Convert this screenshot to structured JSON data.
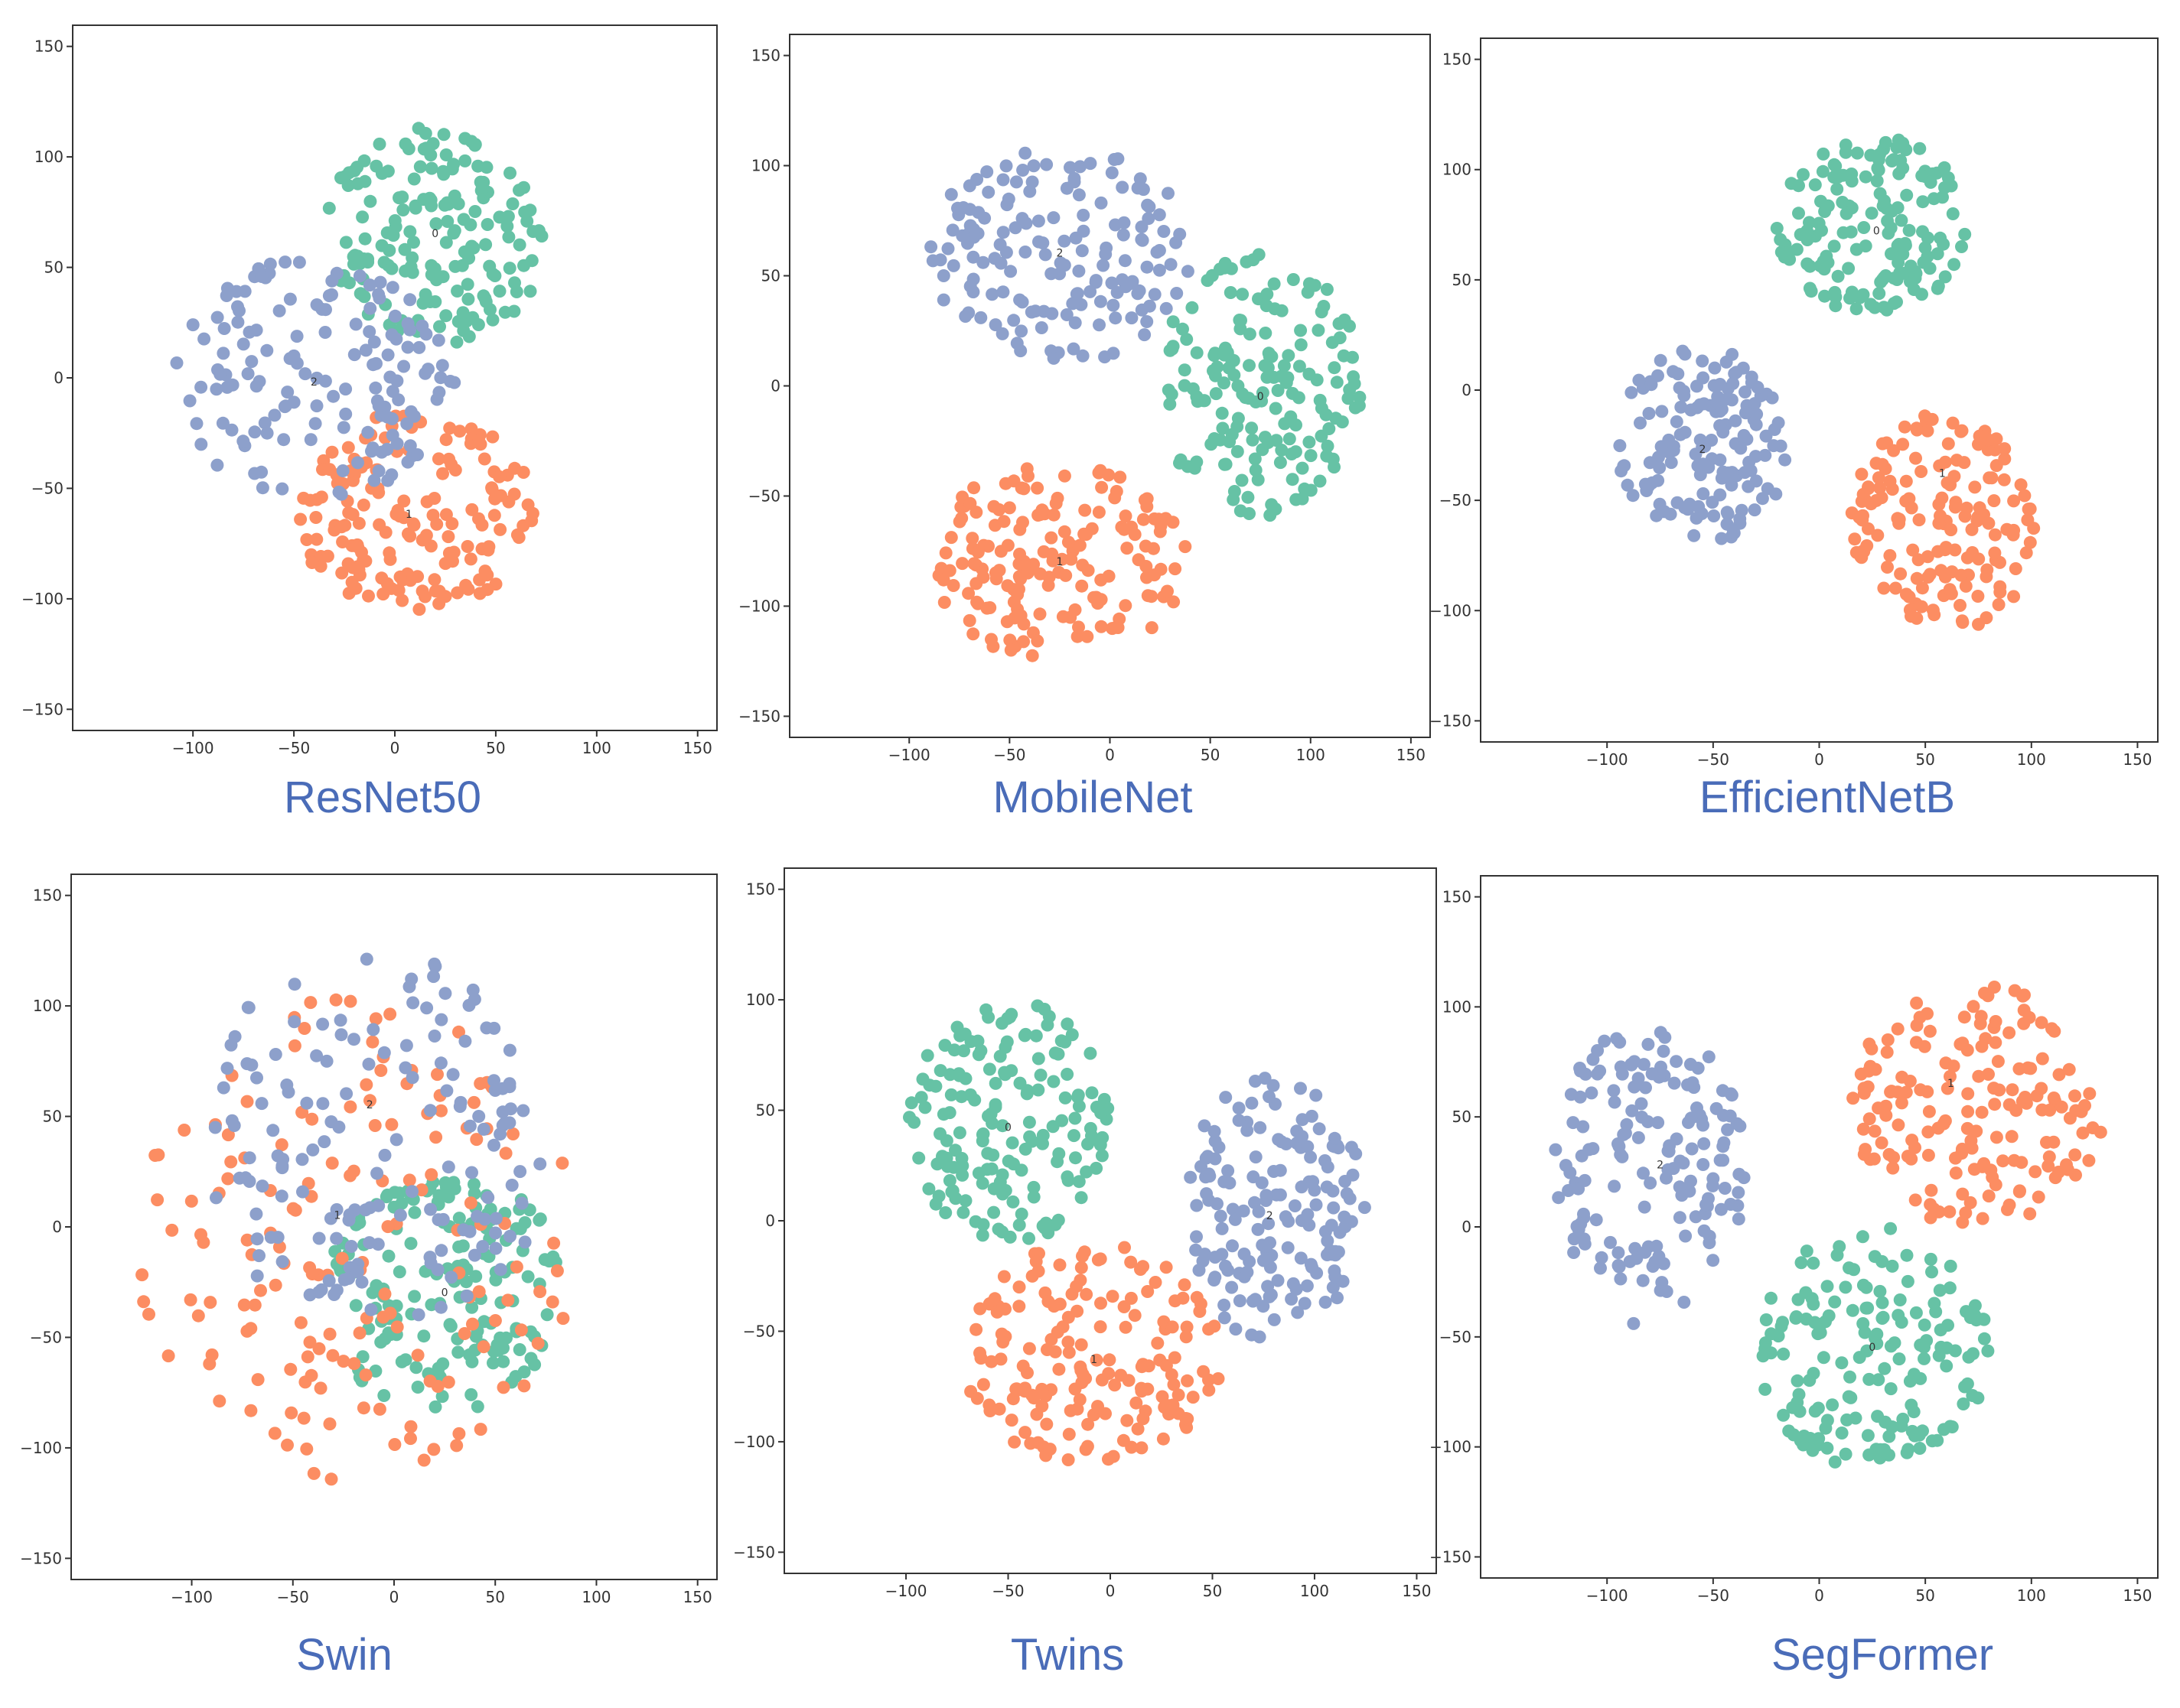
{
  "colors": {
    "class0": "#66C2A5",
    "class1": "#FC8D62",
    "class2": "#8DA0CB",
    "caption": "#4A6CB8",
    "axis": "#333333"
  },
  "chart_data": [
    {
      "type": "scatter",
      "title": "ResNet50",
      "xlim": [
        -150,
        150
      ],
      "ylim": [
        -150,
        150
      ],
      "xticks": [
        -100,
        -50,
        0,
        50,
        100,
        150
      ],
      "yticks": [
        150,
        100,
        50,
        0,
        -50,
        -100,
        -150
      ],
      "grid": false,
      "series": [
        {
          "name": "0",
          "color": "#66C2A5",
          "center": [
            20,
            65
          ],
          "spread": [
            55,
            50
          ],
          "count": 170
        },
        {
          "name": "1",
          "color": "#FC8D62",
          "center": [
            10,
            -60
          ],
          "spread": [
            60,
            45
          ],
          "count": 170
        },
        {
          "name": "2",
          "color": "#8DA0CB",
          "center": [
            -40,
            0
          ],
          "spread": [
            70,
            55
          ],
          "count": 150
        }
      ],
      "center_labels": [
        {
          "text": "0",
          "x": 20,
          "y": 65
        },
        {
          "text": "1",
          "x": 7,
          "y": -62
        },
        {
          "text": "2",
          "x": -40,
          "y": -2
        }
      ]
    },
    {
      "type": "scatter",
      "title": "MobileNet",
      "xlim": [
        -150,
        150
      ],
      "ylim": [
        -150,
        150
      ],
      "xticks": [
        -100,
        -50,
        0,
        50,
        100,
        150
      ],
      "yticks": [
        150,
        100,
        50,
        0,
        -50,
        -100,
        -150
      ],
      "grid": false,
      "series": [
        {
          "name": "0",
          "color": "#66C2A5",
          "center": [
            75,
            0
          ],
          "spread": [
            50,
            60
          ],
          "count": 170
        },
        {
          "name": "1",
          "color": "#FC8D62",
          "center": [
            -25,
            -80
          ],
          "spread": [
            65,
            45
          ],
          "count": 170
        },
        {
          "name": "2",
          "color": "#8DA0CB",
          "center": [
            -25,
            60
          ],
          "spread": [
            65,
            50
          ],
          "count": 160
        }
      ],
      "center_labels": [
        {
          "text": "0",
          "x": 75,
          "y": -5
        },
        {
          "text": "1",
          "x": -25,
          "y": -80
        },
        {
          "text": "2",
          "x": -25,
          "y": 60
        }
      ]
    },
    {
      "type": "scatter",
      "title": "EfficientNetB",
      "xlim": [
        -150,
        150
      ],
      "ylim": [
        -150,
        150
      ],
      "xticks": [
        -100,
        -50,
        0,
        50,
        100,
        150
      ],
      "yticks": [
        150,
        100,
        50,
        0,
        -50,
        -100,
        -150
      ],
      "grid": false,
      "series": [
        {
          "name": "0",
          "color": "#66C2A5",
          "center": [
            25,
            75
          ],
          "spread": [
            45,
            40
          ],
          "count": 160
        },
        {
          "name": "1",
          "color": "#FC8D62",
          "center": [
            60,
            -60
          ],
          "spread": [
            45,
            50
          ],
          "count": 160
        },
        {
          "name": "2",
          "color": "#8DA0CB",
          "center": [
            -55,
            -25
          ],
          "spread": [
            40,
            45
          ],
          "count": 150
        }
      ],
      "center_labels": [
        {
          "text": "0",
          "x": 27,
          "y": 72
        },
        {
          "text": "1",
          "x": 58,
          "y": -38
        },
        {
          "text": "2",
          "x": -55,
          "y": -27
        }
      ]
    },
    {
      "type": "scatter",
      "title": "Swin",
      "xlim": [
        -150,
        150
      ],
      "ylim": [
        -150,
        150
      ],
      "xticks": [
        -100,
        -50,
        0,
        50,
        100,
        150
      ],
      "yticks": [
        150,
        100,
        50,
        0,
        -50,
        -100,
        -150
      ],
      "grid": false,
      "series": [
        {
          "name": "0",
          "color": "#66C2A5",
          "center": [
            25,
            -30
          ],
          "spread": [
            60,
            55
          ],
          "count": 170
        },
        {
          "name": "1",
          "color": "#FC8D62",
          "center": [
            -20,
            -5
          ],
          "spread": [
            110,
            110
          ],
          "count": 160
        },
        {
          "name": "2",
          "color": "#8DA0CB",
          "center": [
            -10,
            40
          ],
          "spread": [
            90,
            85
          ],
          "count": 160
        }
      ],
      "center_labels": [
        {
          "text": "0",
          "x": 25,
          "y": -30
        },
        {
          "text": "1",
          "x": -28,
          "y": 5
        },
        {
          "text": "2",
          "x": -12,
          "y": 55
        }
      ]
    },
    {
      "type": "scatter",
      "title": "Twins",
      "xlim": [
        -150,
        150
      ],
      "ylim": [
        -150,
        150
      ],
      "xticks": [
        -100,
        -50,
        0,
        50,
        100,
        150
      ],
      "yticks": [
        150,
        100,
        50,
        0,
        -50,
        -100,
        -150
      ],
      "grid": false,
      "series": [
        {
          "name": "0",
          "color": "#66C2A5",
          "center": [
            -50,
            45
          ],
          "spread": [
            50,
            55
          ],
          "count": 170
        },
        {
          "name": "1",
          "color": "#FC8D62",
          "center": [
            -10,
            -60
          ],
          "spread": [
            65,
            50
          ],
          "count": 170
        },
        {
          "name": "2",
          "color": "#8DA0CB",
          "center": [
            80,
            5
          ],
          "spread": [
            45,
            60
          ],
          "count": 160
        }
      ],
      "center_labels": [
        {
          "text": "0",
          "x": -50,
          "y": 42
        },
        {
          "text": "1",
          "x": -8,
          "y": -63
        },
        {
          "text": "2",
          "x": 78,
          "y": 2
        }
      ]
    },
    {
      "type": "scatter",
      "title": "SegFormer",
      "xlim": [
        -150,
        150
      ],
      "ylim": [
        -150,
        150
      ],
      "xticks": [
        -100,
        -50,
        0,
        50,
        100,
        150
      ],
      "yticks": [
        150,
        100,
        50,
        0,
        -50,
        -100,
        -150
      ],
      "grid": false,
      "series": [
        {
          "name": "0",
          "color": "#66C2A5",
          "center": [
            25,
            -55
          ],
          "spread": [
            55,
            55
          ],
          "count": 170
        },
        {
          "name": "1",
          "color": "#FC8D62",
          "center": [
            75,
            55
          ],
          "spread": [
            60,
            55
          ],
          "count": 170
        },
        {
          "name": "2",
          "color": "#8DA0CB",
          "center": [
            -80,
            25
          ],
          "spread": [
            45,
            70
          ],
          "count": 160
        }
      ],
      "center_labels": [
        {
          "text": "0",
          "x": 25,
          "y": -55
        },
        {
          "text": "1",
          "x": 62,
          "y": 65
        },
        {
          "text": "2",
          "x": -75,
          "y": 28
        }
      ]
    }
  ]
}
